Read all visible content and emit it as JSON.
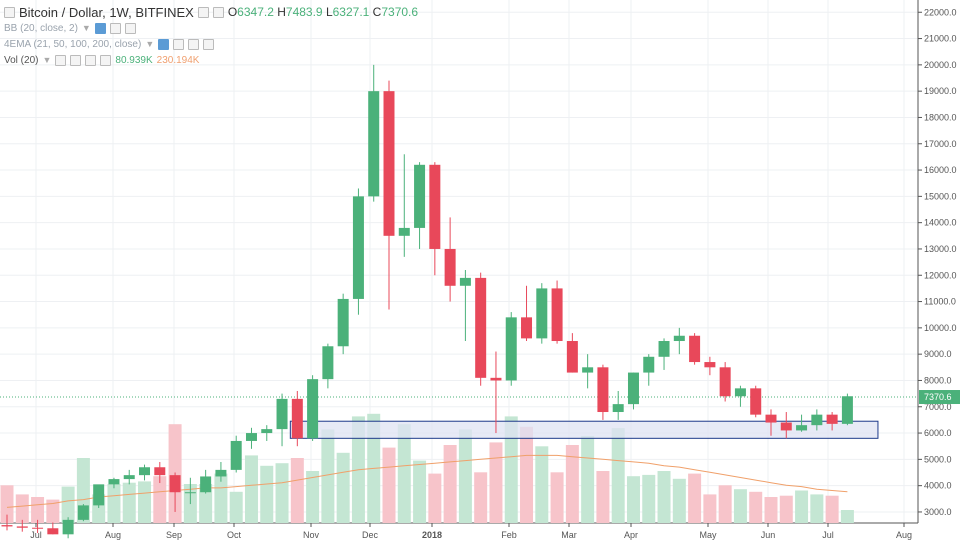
{
  "header": {
    "symbol_title": "Bitcoin / Dollar, 1W, BITFINEX",
    "ohlc": {
      "o_label": "O",
      "o": "6347.2",
      "h_label": "H",
      "h": "7483.9",
      "l_label": "L",
      "l": "6327.1",
      "c_label": "C",
      "c": "7370.6"
    },
    "indicators": [
      {
        "label": "BB (20, close, 2)"
      },
      {
        "label": "4EMA (21, 50, 100, 200, close)"
      }
    ],
    "volume": {
      "label": "Vol (20)",
      "value": "80.939K",
      "ma_value": "230.194K"
    }
  },
  "colors": {
    "up": "#4bb17a",
    "down": "#e8485a",
    "vol_up": "#c4e6d3",
    "vol_down": "#f7c4ca",
    "ma": "#f0a06a",
    "zone_fill": "#dfe3f3",
    "zone_stroke": "#1e3a8a",
    "price_line": "#4bb17a",
    "grid": "#eef0f3"
  },
  "chart_data": {
    "type": "candlestick",
    "title": "Bitcoin / Dollar, 1W, BITFINEX",
    "ylim": [
      2200,
      22200
    ],
    "y_ticks": [
      "3000.0",
      "4000.0",
      "5000.0",
      "6000.0",
      "7000.0",
      "8000.0",
      "9000.0",
      "10000.0",
      "11000.0",
      "12000.0",
      "13000.0",
      "14000.0",
      "15000.0",
      "16000.0",
      "17000.0",
      "18000.0",
      "19000.0",
      "20000.0",
      "21000.0",
      "22000.0"
    ],
    "x_labels": [
      "Jul",
      "Aug",
      "Sep",
      "Oct",
      "Nov",
      "Dec",
      "2018",
      "Feb",
      "Mar",
      "Apr",
      "May",
      "Jun",
      "Jul",
      "Aug"
    ],
    "current_price": 7370.6,
    "support_zone": {
      "low": 5800,
      "high": 6450,
      "from_week": 19,
      "to_week": 57
    },
    "candles": [
      {
        "o": 2500,
        "h": 2900,
        "l": 2300,
        "c": 2450
      },
      {
        "o": 2450,
        "h": 2700,
        "l": 2250,
        "c": 2400
      },
      {
        "o": 2400,
        "h": 2700,
        "l": 2200,
        "c": 2380
      },
      {
        "o": 2380,
        "h": 2600,
        "l": 2150,
        "c": 2150
      },
      {
        "o": 2150,
        "h": 2800,
        "l": 2000,
        "c": 2700
      },
      {
        "o": 2700,
        "h": 3300,
        "l": 2650,
        "c": 3250
      },
      {
        "o": 3250,
        "h": 4000,
        "l": 3150,
        "c": 4050
      },
      {
        "o": 4050,
        "h": 4300,
        "l": 3900,
        "c": 4250
      },
      {
        "o": 4250,
        "h": 4600,
        "l": 4050,
        "c": 4400
      },
      {
        "o": 4400,
        "h": 4800,
        "l": 4200,
        "c": 4700
      },
      {
        "o": 4700,
        "h": 4900,
        "l": 4100,
        "c": 4400
      },
      {
        "o": 4400,
        "h": 4500,
        "l": 3000,
        "c": 3750
      },
      {
        "o": 3750,
        "h": 4300,
        "l": 3300,
        "c": 3750
      },
      {
        "o": 3750,
        "h": 4600,
        "l": 3700,
        "c": 4350
      },
      {
        "o": 4350,
        "h": 4900,
        "l": 4150,
        "c": 4600
      },
      {
        "o": 4600,
        "h": 5900,
        "l": 4500,
        "c": 5700
      },
      {
        "o": 5700,
        "h": 6200,
        "l": 5400,
        "c": 6000
      },
      {
        "o": 6000,
        "h": 6300,
        "l": 5700,
        "c": 6150
      },
      {
        "o": 6150,
        "h": 7500,
        "l": 5500,
        "c": 7300
      },
      {
        "o": 7300,
        "h": 7600,
        "l": 5500,
        "c": 5800
      },
      {
        "o": 5800,
        "h": 8200,
        "l": 5700,
        "c": 8050
      },
      {
        "o": 8050,
        "h": 9400,
        "l": 7700,
        "c": 9300
      },
      {
        "o": 9300,
        "h": 11300,
        "l": 9000,
        "c": 11100
      },
      {
        "o": 11100,
        "h": 15300,
        "l": 10500,
        "c": 15000
      },
      {
        "o": 15000,
        "h": 20000,
        "l": 14800,
        "c": 19000
      },
      {
        "o": 19000,
        "h": 19400,
        "l": 10700,
        "c": 13500
      },
      {
        "o": 13500,
        "h": 16600,
        "l": 12700,
        "c": 13800
      },
      {
        "o": 13800,
        "h": 16300,
        "l": 13000,
        "c": 16200
      },
      {
        "o": 16200,
        "h": 16300,
        "l": 12000,
        "c": 13000
      },
      {
        "o": 13000,
        "h": 14200,
        "l": 11000,
        "c": 11600
      },
      {
        "o": 11600,
        "h": 12200,
        "l": 9500,
        "c": 11900
      },
      {
        "o": 11900,
        "h": 12100,
        "l": 7800,
        "c": 8100
      },
      {
        "o": 8100,
        "h": 9100,
        "l": 6000,
        "c": 8000
      },
      {
        "o": 8000,
        "h": 10600,
        "l": 7800,
        "c": 10400
      },
      {
        "o": 10400,
        "h": 11600,
        "l": 9500,
        "c": 9600
      },
      {
        "o": 9600,
        "h": 11700,
        "l": 9400,
        "c": 11500
      },
      {
        "o": 11500,
        "h": 11800,
        "l": 9400,
        "c": 9500
      },
      {
        "o": 9500,
        "h": 9800,
        "l": 8300,
        "c": 8300
      },
      {
        "o": 8300,
        "h": 9000,
        "l": 7700,
        "c": 8500
      },
      {
        "o": 8500,
        "h": 8600,
        "l": 6500,
        "c": 6800
      },
      {
        "o": 6800,
        "h": 7600,
        "l": 6500,
        "c": 7100
      },
      {
        "o": 7100,
        "h": 8300,
        "l": 6900,
        "c": 8300
      },
      {
        "o": 8300,
        "h": 9000,
        "l": 7800,
        "c": 8900
      },
      {
        "o": 8900,
        "h": 9600,
        "l": 8400,
        "c": 9500
      },
      {
        "o": 9500,
        "h": 10000,
        "l": 9000,
        "c": 9700
      },
      {
        "o": 9700,
        "h": 9800,
        "l": 8600,
        "c": 8700
      },
      {
        "o": 8700,
        "h": 8900,
        "l": 8200,
        "c": 8500
      },
      {
        "o": 8500,
        "h": 8700,
        "l": 7200,
        "c": 7400
      },
      {
        "o": 7400,
        "h": 7800,
        "l": 7000,
        "c": 7700
      },
      {
        "o": 7700,
        "h": 7800,
        "l": 6600,
        "c": 6700
      },
      {
        "o": 6700,
        "h": 6900,
        "l": 5900,
        "c": 6400
      },
      {
        "o": 6400,
        "h": 6800,
        "l": 5800,
        "c": 6100
      },
      {
        "o": 6100,
        "h": 6700,
        "l": 6050,
        "c": 6300
      },
      {
        "o": 6300,
        "h": 6900,
        "l": 6100,
        "c": 6700
      },
      {
        "o": 6700,
        "h": 6800,
        "l": 6100,
        "c": 6350
      },
      {
        "o": 6350,
        "h": 7500,
        "l": 6300,
        "c": 7400
      }
    ],
    "volume_relative": [
      0.29,
      0.22,
      0.2,
      0.18,
      0.28,
      0.5,
      0.22,
      0.3,
      0.31,
      0.32,
      0.36,
      0.76,
      0.3,
      0.3,
      0.38,
      0.24,
      0.52,
      0.44,
      0.46,
      0.5,
      0.4,
      0.72,
      0.54,
      0.82,
      0.84,
      0.58,
      0.76,
      0.48,
      0.38,
      0.6,
      0.72,
      0.39,
      0.62,
      0.82,
      0.74,
      0.59,
      0.39,
      0.6,
      0.67,
      0.4,
      0.73,
      0.36,
      0.37,
      0.4,
      0.34,
      0.38,
      0.22,
      0.29,
      0.26,
      0.24,
      0.2,
      0.21,
      0.25,
      0.22,
      0.21,
      0.1
    ],
    "volume_ma_relative": [
      0.12,
      0.13,
      0.14,
      0.15,
      0.17,
      0.18,
      0.2,
      0.21,
      0.22,
      0.23,
      0.24,
      0.25,
      0.26,
      0.27,
      0.27,
      0.28,
      0.29,
      0.3,
      0.31,
      0.33,
      0.35,
      0.37,
      0.39,
      0.41,
      0.42,
      0.43,
      0.44,
      0.45,
      0.46,
      0.47,
      0.48,
      0.49,
      0.5,
      0.51,
      0.52,
      0.52,
      0.52,
      0.51,
      0.5,
      0.49,
      0.48,
      0.47,
      0.46,
      0.44,
      0.43,
      0.41,
      0.39,
      0.37,
      0.35,
      0.33,
      0.31,
      0.29,
      0.28,
      0.26,
      0.25,
      0.24
    ]
  }
}
